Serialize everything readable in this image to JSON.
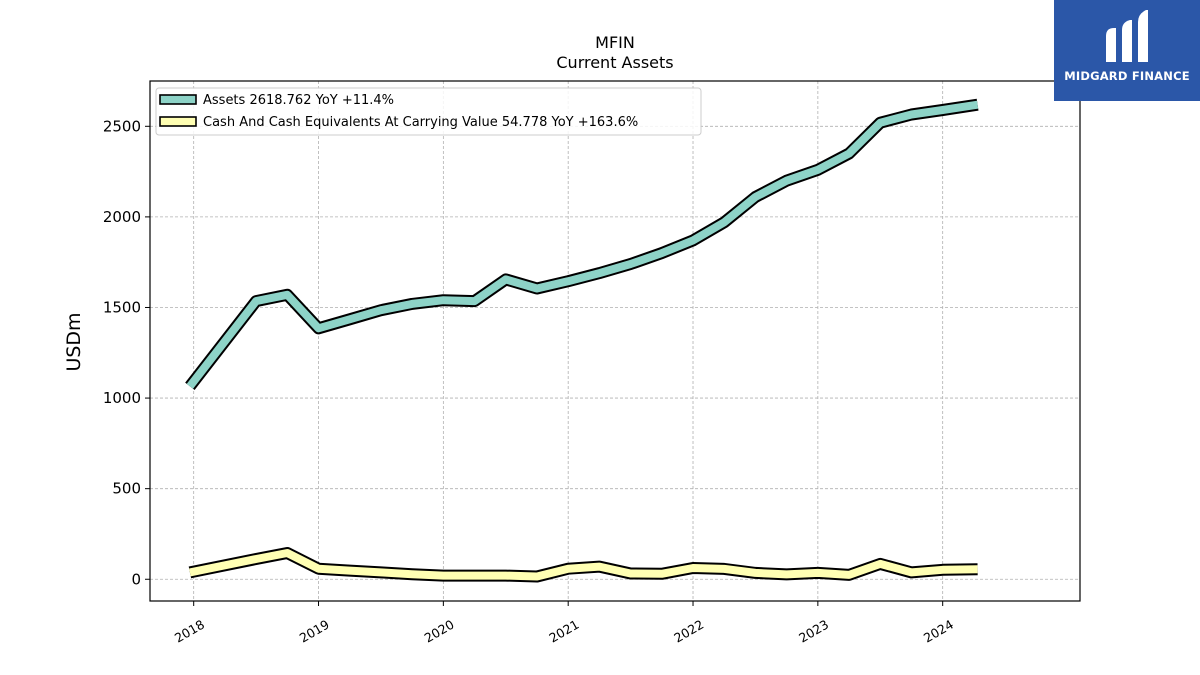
{
  "branding": {
    "logo_text": "MIDGARD FINANCE",
    "logo_color": "#2b57a8"
  },
  "chart_data": {
    "type": "line",
    "title": "MFIN",
    "subtitle": "Current  Assets",
    "ylabel": "USDm",
    "xlabel": "",
    "ylim": [
      -120,
      2750
    ],
    "xlim": [
      2017.65,
      2025.1
    ],
    "yticks": [
      0,
      500,
      1000,
      1500,
      2000,
      2500
    ],
    "xticks": [
      "2018",
      "2019",
      "2020",
      "2021",
      "2022",
      "2023",
      "2024"
    ],
    "grid": true,
    "legend_position": "top-left",
    "series": [
      {
        "name": "Assets  2618.762 YoY +11.4%",
        "color": "#8dd3c7",
        "x": [
          2017.97,
          2018.5,
          2018.75,
          2019.0,
          2019.25,
          2019.5,
          2019.75,
          2020.0,
          2020.25,
          2020.5,
          2020.75,
          2021.0,
          2021.25,
          2021.5,
          2021.75,
          2022.0,
          2022.25,
          2022.5,
          2022.75,
          2023.0,
          2023.25,
          2023.5,
          2023.75,
          2024.0,
          2024.28
        ],
        "values": [
          1065,
          1535,
          1570,
          1385,
          1435,
          1485,
          1520,
          1540,
          1535,
          1655,
          1605,
          1645,
          1690,
          1740,
          1800,
          1870,
          1970,
          2110,
          2200,
          2260,
          2350,
          2520,
          2565,
          2590,
          2619
        ]
      },
      {
        "name": "Cash And Cash Equivalents At Carrying Value  54.778 YoY +163.6%",
        "color": "#ffffb3",
        "x": [
          2017.97,
          2018.5,
          2018.75,
          2019.0,
          2019.25,
          2019.5,
          2019.75,
          2020.0,
          2020.25,
          2020.5,
          2020.75,
          2021.0,
          2021.25,
          2021.5,
          2021.75,
          2022.0,
          2022.25,
          2022.5,
          2022.75,
          2023.0,
          2023.25,
          2023.5,
          2023.75,
          2024.0,
          2024.28
        ],
        "values": [
          38,
          112,
          145,
          58,
          48,
          38,
          28,
          20,
          20,
          20,
          15,
          58,
          70,
          32,
          30,
          62,
          57,
          35,
          27,
          35,
          24,
          85,
          38,
          52,
          55
        ]
      }
    ]
  }
}
